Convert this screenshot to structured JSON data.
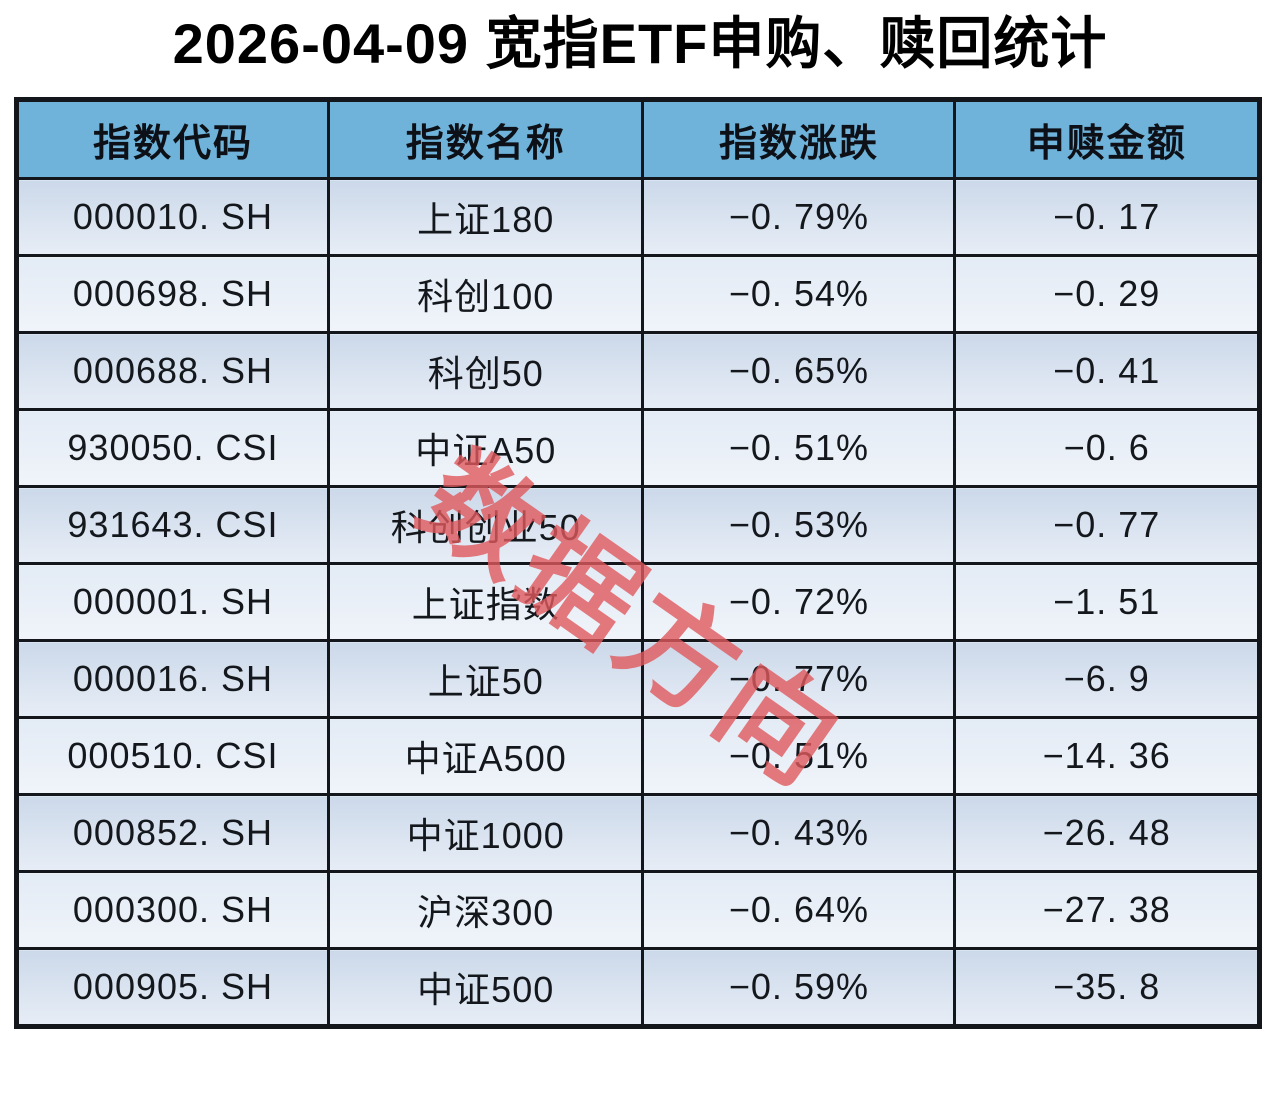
{
  "page": {
    "title": "2026-04-09 宽指ETF申购、赎回统计",
    "watermark": "数据方向"
  },
  "colors": {
    "header_bg": "#6fb3da",
    "row_odd_bg_top": "#ccd9ea",
    "row_odd_bg_bottom": "#e7edf6",
    "row_even_bg_top": "#e3ebf5",
    "row_even_bg_bottom": "#f0f4fa",
    "border": "#13171c",
    "title_text": "#000000",
    "watermark_red": "#e05a5e"
  },
  "table": {
    "columns": [
      "指数代码",
      "指数名称",
      "指数涨跌",
      "申赎金额"
    ],
    "rows": [
      {
        "code": "000010. SH",
        "name": "上证180",
        "change": "−0. 79%",
        "amount": "−0. 17"
      },
      {
        "code": "000698. SH",
        "name": "科创100",
        "change": "−0. 54%",
        "amount": "−0. 29"
      },
      {
        "code": "000688. SH",
        "name": "科创50",
        "change": "−0. 65%",
        "amount": "−0. 41"
      },
      {
        "code": "930050. CSI",
        "name": "中证A50",
        "change": "−0. 51%",
        "amount": "−0. 6"
      },
      {
        "code": "931643. CSI",
        "name": "科创创业50",
        "change": "−0. 53%",
        "amount": "−0. 77"
      },
      {
        "code": "000001. SH",
        "name": "上证指数",
        "change": "−0. 72%",
        "amount": "−1. 51"
      },
      {
        "code": "000016. SH",
        "name": "上证50",
        "change": "−0. 77%",
        "amount": "−6. 9"
      },
      {
        "code": "000510. CSI",
        "name": "中证A500",
        "change": "−0. 51%",
        "amount": "−14. 36"
      },
      {
        "code": "000852. SH",
        "name": "中证1000",
        "change": "−0. 43%",
        "amount": "−26. 48"
      },
      {
        "code": "000300. SH",
        "name": "沪深300",
        "change": "−0. 64%",
        "amount": "−27. 38"
      },
      {
        "code": "000905. SH",
        "name": "中证500",
        "change": "−0. 59%",
        "amount": "−35. 8"
      }
    ]
  },
  "chart_data": {
    "type": "table",
    "title": "2026-04-09 宽指ETF申购、赎回统计",
    "columns": [
      "指数代码",
      "指数名称",
      "指数涨跌(%)",
      "申赎金额"
    ],
    "rows": [
      [
        "000010.SH",
        "上证180",
        -0.79,
        -0.17
      ],
      [
        "000698.SH",
        "科创100",
        -0.54,
        -0.29
      ],
      [
        "000688.SH",
        "科创50",
        -0.65,
        -0.41
      ],
      [
        "930050.CSI",
        "中证A50",
        -0.51,
        -0.6
      ],
      [
        "931643.CSI",
        "科创创业50",
        -0.53,
        -0.77
      ],
      [
        "000001.SH",
        "上证指数",
        -0.72,
        -1.51
      ],
      [
        "000016.SH",
        "上证50",
        -0.77,
        -6.9
      ],
      [
        "000510.CSI",
        "中证A500",
        -0.51,
        -14.36
      ],
      [
        "000852.SH",
        "中证1000",
        -0.43,
        -26.48
      ],
      [
        "000300.SH",
        "沪深300",
        -0.64,
        -27.38
      ],
      [
        "000905.SH",
        "中证500",
        -0.59,
        -35.8
      ]
    ]
  }
}
